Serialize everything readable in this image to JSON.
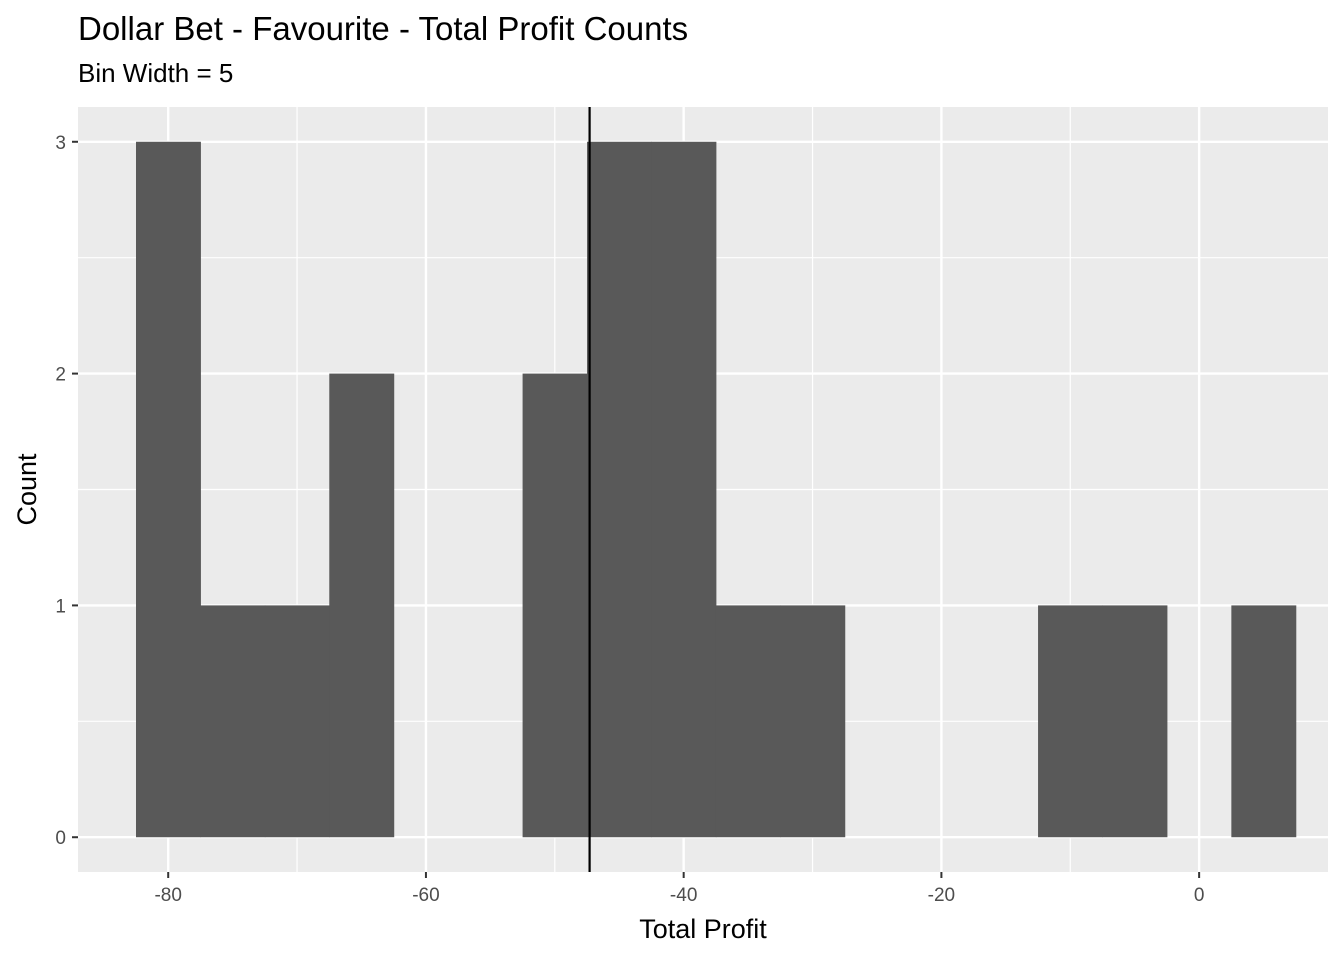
{
  "chart_data": {
    "type": "bar",
    "title": "Dollar Bet - Favourite - Total Profit Counts",
    "subtitle": "Bin Width = 5",
    "xlabel": "Total Profit",
    "ylabel": "Count",
    "bin_width": 5,
    "bins": [
      {
        "x0": -82.5,
        "x1": -77.5,
        "count": 3
      },
      {
        "x0": -77.5,
        "x1": -72.5,
        "count": 1
      },
      {
        "x0": -72.5,
        "x1": -67.5,
        "count": 1
      },
      {
        "x0": -67.5,
        "x1": -62.5,
        "count": 2
      },
      {
        "x0": -52.5,
        "x1": -47.5,
        "count": 2
      },
      {
        "x0": -47.5,
        "x1": -42.5,
        "count": 3
      },
      {
        "x0": -42.5,
        "x1": -37.5,
        "count": 3
      },
      {
        "x0": -37.5,
        "x1": -32.5,
        "count": 1
      },
      {
        "x0": -32.5,
        "x1": -27.5,
        "count": 1
      },
      {
        "x0": -12.5,
        "x1": -7.5,
        "count": 1
      },
      {
        "x0": -7.5,
        "x1": -2.5,
        "count": 1
      },
      {
        "x0": 2.5,
        "x1": 7.5,
        "count": 1
      }
    ],
    "reference_line_x": -47.3,
    "xlim": [
      -87.0,
      10.0
    ],
    "ylim": [
      -0.15,
      3.15
    ],
    "x_ticks": [
      -80,
      -60,
      -40,
      -20,
      0
    ],
    "x_tick_labels": [
      "-80",
      "-60",
      "-40",
      "-20",
      "0"
    ],
    "y_ticks": [
      0,
      1,
      2,
      3
    ],
    "y_tick_labels": [
      "0",
      "1",
      "2",
      "3"
    ],
    "grid": true,
    "colors": {
      "panel_background": "#ebebeb",
      "bar_fill": "#595959",
      "grid_line": "#ffffff",
      "reference_line": "#000000"
    }
  }
}
